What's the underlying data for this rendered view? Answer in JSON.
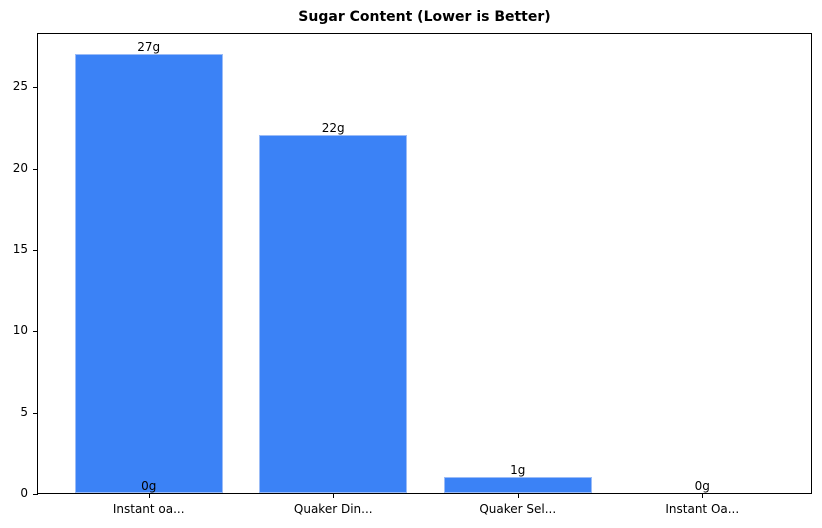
{
  "chart_data": {
    "type": "bar",
    "title": "Sugar Content (Lower is Better)",
    "xlabel": "",
    "ylabel": "",
    "categories": [
      "Instant oa...",
      "Quaker Din...",
      "Quaker Sel...",
      "Instant Oa..."
    ],
    "values": [
      27,
      22,
      1,
      0
    ],
    "value_labels": [
      "27g",
      "22g",
      "1g",
      "0g"
    ],
    "extra_annotations": [
      {
        "x_index": 0,
        "y": 0,
        "text": "0g"
      }
    ],
    "yticks": [
      0,
      5,
      10,
      15,
      20,
      25
    ],
    "ylim": [
      0,
      28.35
    ],
    "grid": false,
    "legend": null,
    "bar_color": "#3b82f6"
  }
}
